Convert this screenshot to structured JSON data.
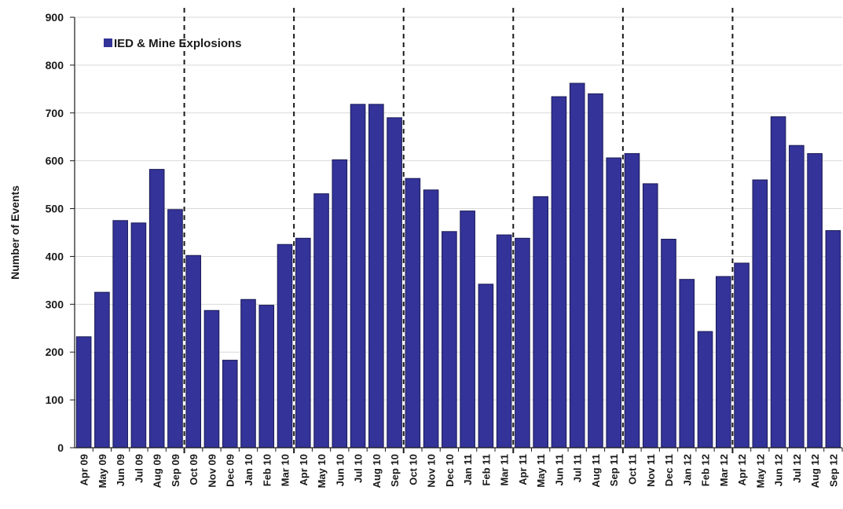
{
  "chart_data": {
    "type": "bar",
    "ylabel": "Number of Events",
    "ylim": [
      0,
      900
    ],
    "yticks": [
      0,
      100,
      200,
      300,
      400,
      500,
      600,
      700,
      800,
      900
    ],
    "legend": {
      "position": "top-left"
    },
    "grid": true,
    "colors": {
      "bar": "#333399",
      "bar_stroke": "#1a1a55",
      "grid": "#d9d9d9",
      "divider": "#1a1a1a"
    },
    "categories": [
      "Apr 09",
      "May 09",
      "Jun 09",
      "Jul 09",
      "Aug 09",
      "Sep 09",
      "Oct 09",
      "Nov 09",
      "Dec 09",
      "Jan 10",
      "Feb 10",
      "Mar 10",
      "Apr 10",
      "May 10",
      "Jun 10",
      "Jul 10",
      "Aug 10",
      "Sep 10",
      "Oct 10",
      "Nov 10",
      "Dec 10",
      "Jan 11",
      "Feb 11",
      "Mar 11",
      "Apr 11",
      "May 11",
      "Jun 11",
      "Jul 11",
      "Aug 11",
      "Sep 11",
      "Oct 11",
      "Nov 11",
      "Dec 11",
      "Jan 12",
      "Feb 12",
      "Mar 12",
      "Apr 12",
      "May 12",
      "Jun 12",
      "Jul 12",
      "Aug 12",
      "Sep 12"
    ],
    "series": [
      {
        "name": "IED & Mine Explosions",
        "values": [
          232,
          325,
          475,
          470,
          582,
          498,
          402,
          287,
          183,
          310,
          298,
          425,
          438,
          531,
          602,
          718,
          718,
          690,
          563,
          539,
          452,
          495,
          342,
          445,
          438,
          525,
          734,
          762,
          740,
          606,
          615,
          552,
          436,
          352,
          243,
          358,
          386,
          560,
          692,
          632,
          615,
          454
        ]
      }
    ],
    "dividers_between": [
      [
        "Sep 09",
        "Oct 09"
      ],
      [
        "Mar 10",
        "Apr 10"
      ],
      [
        "Sep 10",
        "Oct 10"
      ],
      [
        "Mar 11",
        "Apr 11"
      ],
      [
        "Sep 11",
        "Oct 11"
      ],
      [
        "Mar 12",
        "Apr 12"
      ]
    ]
  }
}
